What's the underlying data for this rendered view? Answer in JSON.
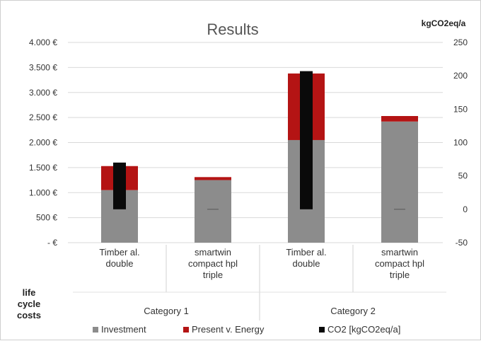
{
  "chart_data": {
    "type": "bar",
    "title": "Results",
    "y_left_unit_label": "",
    "y_right_unit_label": "kgCO2eq/a",
    "left_axis_side_label": [
      "life",
      "cycle",
      "costs"
    ],
    "left_ticks": [
      "4.000 €",
      "3.500 €",
      "3.000 €",
      "2.500 €",
      "2.000 €",
      "1.500 €",
      "1.000 €",
      "500 €",
      "-  €"
    ],
    "right_ticks": [
      "250",
      "200",
      "150",
      "100",
      "50",
      "0",
      "-50"
    ],
    "ylim_left": [
      0,
      4000
    ],
    "ylim_right": [
      -50,
      250
    ],
    "grid": true,
    "categories": [
      {
        "label": [
          "Timber al.",
          "double"
        ],
        "group": "Category 1"
      },
      {
        "label": [
          "smartwin",
          "compact hpl",
          "triple"
        ],
        "group": "Category 1"
      },
      {
        "label": [
          "Timber al.",
          "double"
        ],
        "group": "Category 2"
      },
      {
        "label": [
          "smartwin",
          "compact hpl",
          "triple"
        ],
        "group": "Category 2"
      }
    ],
    "groups": [
      "Category 1",
      "Category 2"
    ],
    "series": [
      {
        "name": "Investment",
        "color": "#8c8c8c",
        "axis": "left",
        "stacked": true,
        "values": [
          1050,
          1250,
          2050,
          2420
        ]
      },
      {
        "name": "Present v. Energy",
        "color": "#b41414",
        "axis": "left",
        "stacked": true,
        "values": [
          480,
          60,
          1330,
          110
        ]
      },
      {
        "name": "CO2 [kgCO2eq/a]",
        "color": "#0a0a0a",
        "axis": "right",
        "stacked": false,
        "values": [
          70,
          0,
          207,
          0
        ]
      }
    ],
    "legend_position": "bottom"
  }
}
